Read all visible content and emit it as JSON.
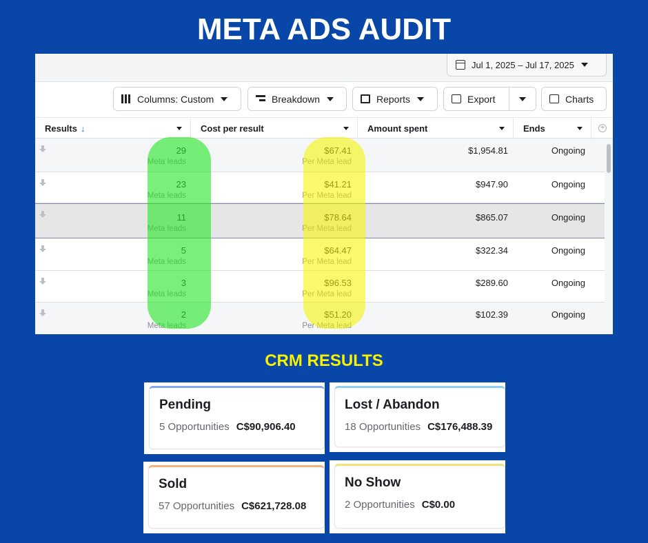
{
  "title": "META ADS AUDIT",
  "date_range": "Jul 1, 2025 – Jul 17, 2025",
  "toolbar": {
    "columns": "Columns: Custom",
    "breakdown": "Breakdown",
    "reports": "Reports",
    "export": "Export",
    "charts": "Charts"
  },
  "table": {
    "headers": [
      "Results",
      "Cost per result",
      "Amount spent",
      "Ends"
    ],
    "rows": [
      {
        "results": "29",
        "results_sub": "Meta leads",
        "cpr": "$67.41",
        "cpr_sub": "Per Meta lead",
        "amount": "$1,954.81",
        "ends": "Ongoing"
      },
      {
        "results": "23",
        "results_sub": "Meta leads",
        "cpr": "$41.21",
        "cpr_sub": "Per Meta lead",
        "amount": "$947.90",
        "ends": "Ongoing"
      },
      {
        "results": "11",
        "results_sub": "Meta leads",
        "cpr": "$78.64",
        "cpr_sub": "Per Meta lead",
        "amount": "$865.07",
        "ends": "Ongoing"
      },
      {
        "results": "5",
        "results_sub": "Meta leads",
        "cpr": "$64.47",
        "cpr_sub": "Per Meta lead",
        "amount": "$322.34",
        "ends": "Ongoing"
      },
      {
        "results": "3",
        "results_sub": "Meta leads",
        "cpr": "$96.53",
        "cpr_sub": "Per Meta lead",
        "amount": "$289.60",
        "ends": "Ongoing"
      },
      {
        "results": "2",
        "results_sub": "Meta leads",
        "cpr": "$51.20",
        "cpr_sub": "Per Meta lead",
        "amount": "$102.39",
        "ends": "Ongoing"
      }
    ]
  },
  "crm_title": "CRM RESULTS",
  "crm_cards": [
    {
      "label": "Pending",
      "count": "5 Opportunities",
      "amount": "C$90,906.40",
      "accent": "#7ea7f0"
    },
    {
      "label": "Lost / Abandon",
      "count": "18 Opportunities",
      "amount": "C$176,488.39",
      "accent": "#8ccff0"
    },
    {
      "label": "Sold",
      "count": "57 Opportunities",
      "amount": "C$621,728.08",
      "accent": "#f0b27a"
    },
    {
      "label": "No Show",
      "count": "2 Opportunities",
      "amount": "C$0.00",
      "accent": "#f2e27a"
    }
  ],
  "colors": {
    "background": "#0846a8",
    "highlight_green": "#28e628",
    "highlight_yellow": "#f4f400",
    "crm_title": "#f6f200"
  }
}
